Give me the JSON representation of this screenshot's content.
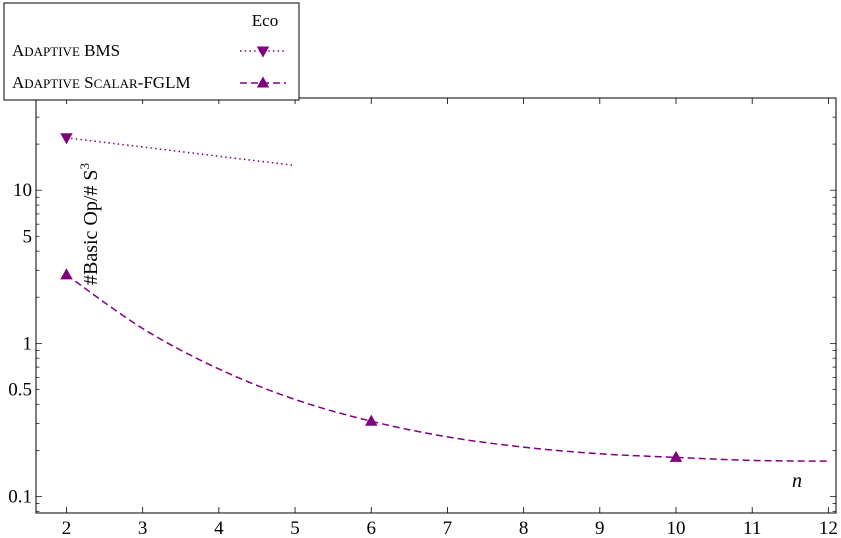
{
  "chart_data": {
    "type": "line",
    "title": "Eco",
    "xlabel": "n",
    "ylabel": "#Basic Op/# S",
    "ylabel_superscript": "3",
    "yscale": "log",
    "xlim": [
      1.6,
      12.1
    ],
    "ylim": [
      0.078,
      40
    ],
    "x_ticks": [
      2,
      3,
      4,
      5,
      6,
      7,
      8,
      9,
      10,
      11,
      12
    ],
    "y_ticks": [
      {
        "value": 0.1,
        "label": "0.1"
      },
      {
        "value": 0.5,
        "label": "0.5"
      },
      {
        "value": 1,
        "label": "1"
      },
      {
        "value": 5,
        "label": "5"
      },
      {
        "value": 10,
        "label": "10"
      }
    ],
    "legend_position": "top-left",
    "series": [
      {
        "name_parts": [
          {
            "text": "A",
            "sc": false
          },
          {
            "text": "DAPTIVE",
            "sc": true
          },
          {
            "text": " BMS",
            "sc": false
          }
        ],
        "color": "#800080",
        "linestyle": "dotted",
        "marker": "triangle-down",
        "marker_x": [
          2
        ],
        "x": [
          2,
          5
        ],
        "y": [
          22,
          14.5
        ]
      },
      {
        "name_parts": [
          {
            "text": "A",
            "sc": false
          },
          {
            "text": "DAPTIVE",
            "sc": true
          },
          {
            "text": " S",
            "sc": false
          },
          {
            "text": "CALAR",
            "sc": true
          },
          {
            "text": "-FGLM",
            "sc": false
          }
        ],
        "color": "#800080",
        "linestyle": "dashed",
        "marker": "triangle-up",
        "marker_x": [
          2,
          6,
          10
        ],
        "x": [
          2,
          3,
          4,
          5,
          6,
          7,
          8,
          9,
          10,
          11,
          12
        ],
        "y": [
          2.8,
          1.25,
          0.68,
          0.43,
          0.31,
          0.245,
          0.21,
          0.19,
          0.18,
          0.172,
          0.17
        ]
      }
    ]
  }
}
